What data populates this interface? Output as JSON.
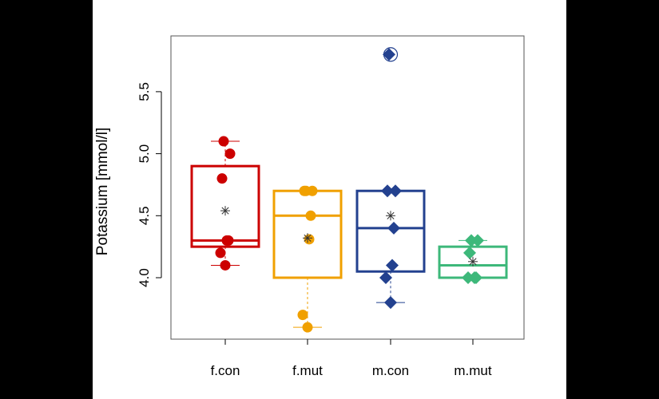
{
  "chart_data": {
    "type": "box",
    "ylabel": "Potassium [mmol/l]",
    "xlabel": "",
    "title": "",
    "ylim": [
      3.5,
      5.95
    ],
    "yticks": [
      4.0,
      4.5,
      5.0,
      5.5
    ],
    "ytick_labels": [
      "4.0",
      "4.5",
      "5.0",
      "5.5"
    ],
    "categories": [
      "f.con",
      "f.mut",
      "m.con",
      "m.mut"
    ],
    "groups": [
      {
        "name": "f.con",
        "color": "#CC0000",
        "marker": "circle",
        "q1": 4.25,
        "median": 4.3,
        "q3": 4.9,
        "whisker_low": 4.1,
        "whisker_high": 5.1,
        "mean": 4.54,
        "points": [
          5.1,
          5.0,
          4.8,
          4.3,
          4.3,
          4.2,
          4.1
        ]
      },
      {
        "name": "f.mut",
        "color": "#F0A000",
        "marker": "circle",
        "q1": 4.0,
        "median": 4.5,
        "q3": 4.7,
        "whisker_low": 3.6,
        "whisker_high": 4.7,
        "mean": 4.32,
        "points": [
          4.7,
          4.7,
          4.7,
          4.5,
          4.31,
          3.7,
          3.6
        ]
      },
      {
        "name": "m.con",
        "color": "#23418F",
        "marker": "diamond",
        "q1": 4.05,
        "median": 4.4,
        "q3": 4.7,
        "whisker_low": 3.8,
        "whisker_high": 4.7,
        "mean": 4.5,
        "points": [
          5.8,
          4.7,
          4.7,
          4.4,
          4.1,
          4.0,
          3.8
        ]
      },
      {
        "name": "m.mut",
        "color": "#3DB87A",
        "marker": "diamond",
        "q1": 4.0,
        "median": 4.1,
        "q3": 4.25,
        "whisker_low": 4.0,
        "whisker_high": 4.3,
        "mean": 4.13,
        "points": [
          4.3,
          4.3,
          4.2,
          4.0,
          4.0,
          4.0
        ]
      }
    ],
    "outliers": [
      {
        "group": "m.con",
        "value": 5.8
      }
    ],
    "grid": false,
    "legend": "none"
  }
}
